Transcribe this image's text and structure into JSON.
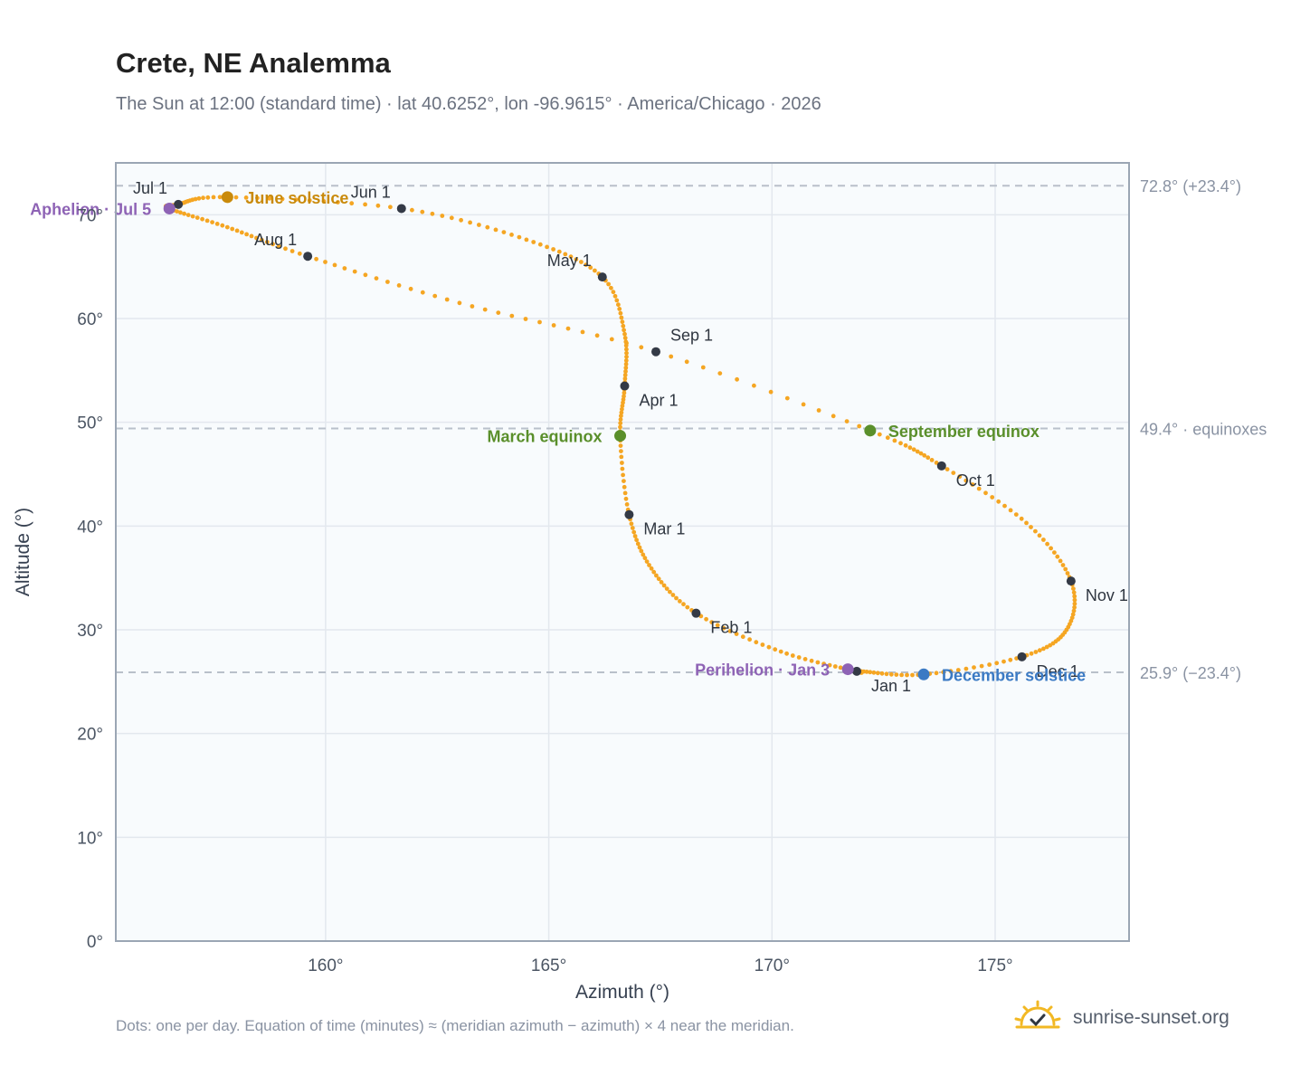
{
  "header": {
    "title": "Crete, NE Analemma",
    "subtitle": "The Sun at 12:00 (standard time) · lat 40.6252°, lon -96.9615° · America/Chicago · 2026"
  },
  "footer": {
    "note": "Dots: one per day. Equation of time (minutes) ≈ (meridian azimuth − azimuth) × 4 near the meridian.",
    "brand": "sunrise-sunset.org"
  },
  "colors": {
    "curve": "#f5a623",
    "month_marker": "#343a46",
    "equinox": "#5a8f2b",
    "june_solstice": "#c98a0b",
    "december_solstice": "#3b7ac4",
    "apsis": "#8e63b5",
    "reference_line": "#b9c0ca",
    "plot_background": "#f8fbfd"
  },
  "chart_data": {
    "type": "scatter",
    "xlabel": "Azimuth (°)",
    "ylabel": "Altitude (°)",
    "xlim": [
      155.3,
      178.0
    ],
    "ylim": [
      0,
      75
    ],
    "xticks": [
      160,
      165,
      170,
      175
    ],
    "xtick_labels": [
      "160°",
      "165°",
      "170°",
      "175°"
    ],
    "yticks": [
      0,
      10,
      20,
      30,
      40,
      50,
      60,
      70
    ],
    "ytick_labels": [
      "0°",
      "10°",
      "20°",
      "30°",
      "40°",
      "50°",
      "60°",
      "70°"
    ],
    "grid": true,
    "reference_lines": [
      {
        "y": 72.8,
        "label": "72.8° (+23.4°)"
      },
      {
        "y": 49.4,
        "label": "49.4° · equinoxes"
      },
      {
        "y": 25.9,
        "label": "25.9° (−23.4°)"
      }
    ],
    "series": [
      {
        "marker": "one dot per day",
        "points": [
          {
            "date": "Jan 1",
            "x": 171.9,
            "y": 26.0
          },
          {
            "date": "Jan 15",
            "x": 170.2,
            "y": 27.9
          },
          {
            "date": "Feb 1",
            "x": 168.3,
            "y": 31.6
          },
          {
            "date": "Feb 15",
            "x": 167.3,
            "y": 35.9
          },
          {
            "date": "Mar 1",
            "x": 166.8,
            "y": 41.1
          },
          {
            "date": "Mar 20",
            "x": 166.6,
            "y": 48.7
          },
          {
            "date": "Apr 1",
            "x": 166.7,
            "y": 53.5
          },
          {
            "date": "Apr 15",
            "x": 166.7,
            "y": 58.5
          },
          {
            "date": "May 1",
            "x": 166.2,
            "y": 64.0
          },
          {
            "date": "May 15",
            "x": 164.5,
            "y": 67.6
          },
          {
            "date": "Jun 1",
            "x": 161.7,
            "y": 70.6
          },
          {
            "date": "Jun 21",
            "x": 157.8,
            "y": 71.7
          },
          {
            "date": "Jul 1",
            "x": 156.7,
            "y": 71.0
          },
          {
            "date": "Jul 5",
            "x": 156.5,
            "y": 70.6
          },
          {
            "date": "Jul 15",
            "x": 157.8,
            "y": 68.8
          },
          {
            "date": "Aug 1",
            "x": 159.6,
            "y": 66.0
          },
          {
            "date": "Aug 15",
            "x": 163.0,
            "y": 61.5
          },
          {
            "date": "Sep 1",
            "x": 167.4,
            "y": 56.8
          },
          {
            "date": "Sep 22",
            "x": 172.2,
            "y": 49.2
          },
          {
            "date": "Oct 1",
            "x": 173.8,
            "y": 45.8
          },
          {
            "date": "Oct 15",
            "x": 175.7,
            "y": 40.3
          },
          {
            "date": "Nov 1",
            "x": 176.7,
            "y": 34.7
          },
          {
            "date": "Nov 15",
            "x": 176.6,
            "y": 30.0
          },
          {
            "date": "Dec 1",
            "x": 175.6,
            "y": 27.4
          },
          {
            "date": "Dec 21",
            "x": 173.4,
            "y": 25.7
          },
          {
            "date": "Dec 31",
            "x": 172.0,
            "y": 26.0
          }
        ]
      }
    ],
    "month_markers": [
      {
        "label": "Jan 1",
        "x": 171.9,
        "y": 26.0,
        "label_pos": "below-right"
      },
      {
        "label": "Feb 1",
        "x": 168.3,
        "y": 31.6,
        "label_pos": "below-right"
      },
      {
        "label": "Mar 1",
        "x": 166.8,
        "y": 41.1,
        "label_pos": "below-right"
      },
      {
        "label": "Apr 1",
        "x": 166.7,
        "y": 53.5,
        "label_pos": "below-right"
      },
      {
        "label": "May 1",
        "x": 166.2,
        "y": 64.0,
        "label_pos": "above-left"
      },
      {
        "label": "Jun 1",
        "x": 161.7,
        "y": 70.6,
        "label_pos": "above-left"
      },
      {
        "label": "Jul 1",
        "x": 156.7,
        "y": 71.0,
        "label_pos": "above-left"
      },
      {
        "label": "Aug 1",
        "x": 159.6,
        "y": 66.0,
        "label_pos": "above-left"
      },
      {
        "label": "Sep 1",
        "x": 167.4,
        "y": 56.8,
        "label_pos": "above-right"
      },
      {
        "label": "Oct 1",
        "x": 173.8,
        "y": 45.8,
        "label_pos": "below-right"
      },
      {
        "label": "Nov 1",
        "x": 176.7,
        "y": 34.7,
        "label_pos": "below-right"
      },
      {
        "label": "Dec 1",
        "x": 175.6,
        "y": 27.4,
        "label_pos": "below-right"
      }
    ],
    "events": [
      {
        "label": "March equinox",
        "x": 166.6,
        "y": 48.7,
        "kind": "equinox",
        "label_side": "left"
      },
      {
        "label": "September equinox",
        "x": 172.2,
        "y": 49.2,
        "kind": "equinox",
        "label_side": "right"
      },
      {
        "label": "June solstice",
        "x": 157.8,
        "y": 71.7,
        "kind": "june_solstice",
        "label_side": "right"
      },
      {
        "label": "December solstice",
        "x": 173.4,
        "y": 25.7,
        "kind": "december_solstice",
        "label_side": "right"
      },
      {
        "label": "Aphelion · Jul 5",
        "x": 156.5,
        "y": 70.6,
        "kind": "apsis",
        "label_side": "left"
      },
      {
        "label": "Perihelion · Jan 3",
        "x": 171.7,
        "y": 26.2,
        "kind": "apsis",
        "label_side": "left"
      }
    ]
  }
}
